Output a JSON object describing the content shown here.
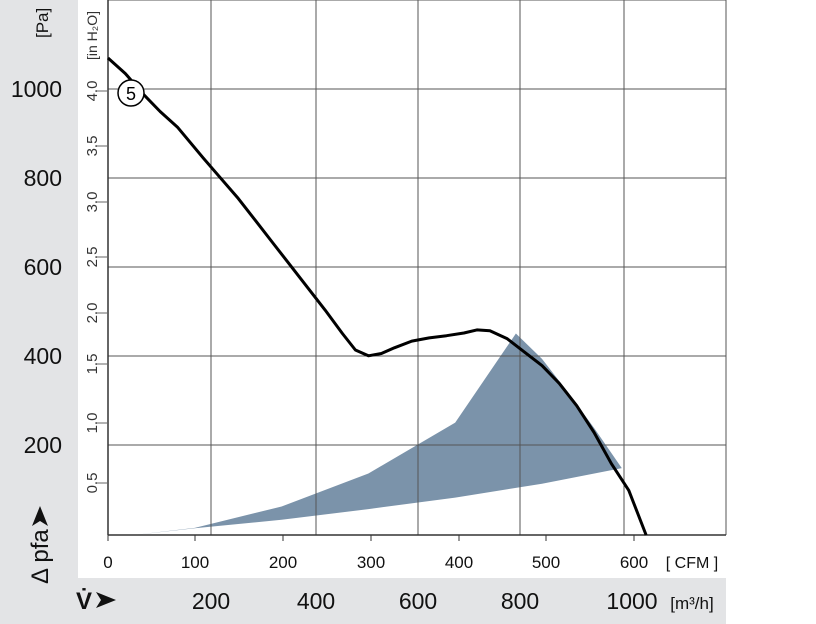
{
  "chart_data": {
    "type": "line",
    "x_axis_primary": {
      "unit": "CFM",
      "range": [
        0,
        712
      ],
      "tick_labels": [
        "0",
        "100",
        "200",
        "300",
        "400",
        "500",
        "600"
      ]
    },
    "x_axis_secondary": {
      "symbol": "V̇",
      "unit": "m³/h",
      "tick_labels": [
        "200",
        "400",
        "600",
        "800",
        "1000"
      ]
    },
    "y_axis_primary": {
      "symbol": "Δ pfa",
      "unit": "Pa",
      "range": [
        0,
        1200
      ],
      "tick_labels": [
        "200",
        "400",
        "600",
        "800",
        "1000"
      ]
    },
    "y_axis_secondary": {
      "unit": "in H₂O",
      "tick_labels": [
        "0.5",
        "1.0",
        "1.5",
        "2.0",
        "2.5",
        "3.0",
        "3.5",
        "4.0"
      ]
    },
    "grid": true,
    "series": [
      {
        "name": "5",
        "color": "#000000",
        "points": [
          [
            0,
            1070
          ],
          [
            20,
            1035
          ],
          [
            40,
            990
          ],
          [
            60,
            950
          ],
          [
            80,
            915
          ],
          [
            110,
            845
          ],
          [
            130,
            800
          ],
          [
            150,
            755
          ],
          [
            170,
            705
          ],
          [
            190,
            655
          ],
          [
            210,
            605
          ],
          [
            230,
            555
          ],
          [
            250,
            505
          ],
          [
            270,
            452
          ],
          [
            285,
            415
          ],
          [
            300,
            402
          ],
          [
            315,
            407
          ],
          [
            330,
            420
          ],
          [
            350,
            435
          ],
          [
            370,
            442
          ],
          [
            390,
            447
          ],
          [
            410,
            453
          ],
          [
            425,
            460
          ],
          [
            440,
            458
          ],
          [
            460,
            440
          ],
          [
            480,
            410
          ],
          [
            500,
            380
          ],
          [
            520,
            340
          ],
          [
            540,
            290
          ],
          [
            560,
            230
          ],
          [
            580,
            160
          ],
          [
            600,
            100
          ],
          [
            620,
            0
          ]
        ]
      }
    ],
    "shaded_region": {
      "color": "#7b93aa",
      "outline": [
        [
          30,
          0
        ],
        [
          100,
          16
        ],
        [
          200,
          64
        ],
        [
          300,
          138
        ],
        [
          400,
          252
        ],
        [
          470,
          452
        ],
        [
          500,
          395
        ],
        [
          530,
          320
        ],
        [
          560,
          240
        ],
        [
          592,
          150
        ],
        [
          500,
          115
        ],
        [
          400,
          84
        ],
        [
          300,
          58
        ],
        [
          200,
          34
        ],
        [
          100,
          15
        ],
        [
          30,
          0
        ]
      ]
    }
  }
}
